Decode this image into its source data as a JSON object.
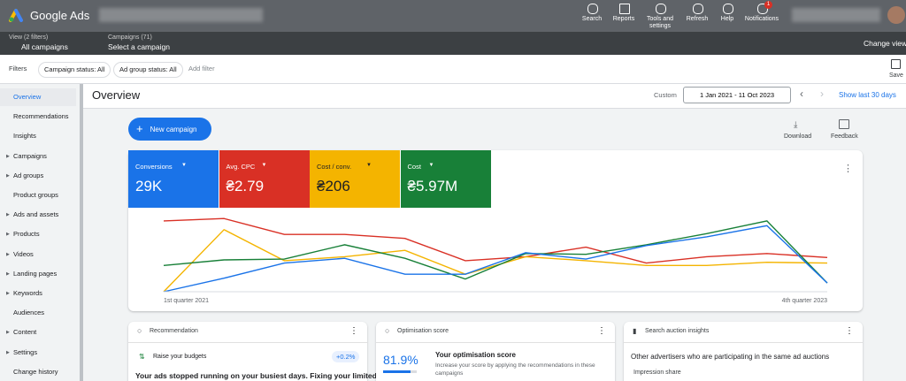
{
  "header": {
    "product": "Google Ads",
    "tools": [
      "Search",
      "Reports",
      "Tools and settings",
      "Refresh",
      "Help",
      "Notifications"
    ],
    "notification_count": "1"
  },
  "subheader": {
    "view_label": "View (2 filters)",
    "view_value": "All campaigns",
    "campaigns_label": "Campaigns (71)",
    "campaigns_value": "Select a campaign",
    "change_view": "Change view"
  },
  "filters": {
    "label": "Filters",
    "chips": [
      "Campaign status: All",
      "Ad group status: All"
    ],
    "add": "Add filter",
    "save": "Save"
  },
  "sidebar": [
    {
      "label": "Overview",
      "expandable": false
    },
    {
      "label": "Recommendations",
      "expandable": false
    },
    {
      "label": "Insights",
      "expandable": false
    },
    {
      "label": "Campaigns",
      "expandable": true
    },
    {
      "label": "Ad groups",
      "expandable": true
    },
    {
      "label": "Product groups",
      "expandable": false
    },
    {
      "label": "Ads and assets",
      "expandable": true
    },
    {
      "label": "Products",
      "expandable": true
    },
    {
      "label": "Videos",
      "expandable": true
    },
    {
      "label": "Landing pages",
      "expandable": true
    },
    {
      "label": "Keywords",
      "expandable": true
    },
    {
      "label": "Audiences",
      "expandable": false
    },
    {
      "label": "Content",
      "expandable": true
    },
    {
      "label": "Settings",
      "expandable": true
    },
    {
      "label": "Change history",
      "expandable": false
    }
  ],
  "page": {
    "title": "Overview",
    "range_type": "Custom",
    "date_range": "1 Jan 2021 - 11 Oct 2023",
    "show_last": "Show last 30 days",
    "new_campaign": "New campaign",
    "download": "Download",
    "feedback": "Feedback"
  },
  "metrics": [
    {
      "name": "Conversions",
      "value": "29K",
      "color": "#1a73e8"
    },
    {
      "name": "Avg. CPC",
      "value": "₴2.79",
      "color": "#d93025"
    },
    {
      "name": "Cost / conv.",
      "value": "₴206",
      "color": "#f4b400"
    },
    {
      "name": "Cost",
      "value": "₴5.97M",
      "color": "#188038"
    }
  ],
  "chart_data": {
    "type": "line",
    "x_start_label": "1st quarter 2021",
    "x_end_label": "4th quarter 2023",
    "ylim": [
      0,
      100
    ],
    "series": [
      {
        "name": "Avg. CPC",
        "color": "#d93025",
        "values": [
          89,
          92,
          72,
          72,
          67,
          39,
          44,
          56,
          36,
          44,
          48,
          43
        ]
      },
      {
        "name": "Cost / conv.",
        "color": "#f4b400",
        "values": [
          0,
          78,
          39,
          44,
          52,
          22,
          44,
          39,
          33,
          33,
          37,
          36
        ]
      },
      {
        "name": "Cost",
        "color": "#188038",
        "values": [
          33,
          40,
          41,
          59,
          42,
          16,
          48,
          47,
          59,
          73,
          89,
          11
        ]
      },
      {
        "name": "Conversions",
        "color": "#1a73e8",
        "values": [
          0,
          17,
          36,
          42,
          22,
          22,
          49,
          41,
          58,
          69,
          83,
          11
        ]
      }
    ]
  },
  "cards": {
    "recommendation": {
      "title": "Recommendation",
      "item": "Raise your budgets",
      "uplift": "+0.2%",
      "text": "Your ads stopped running on your busiest days. Fixing your limited"
    },
    "optimisation": {
      "title": "Optimisation score",
      "score": {
        "value": 81.9,
        "label": "81.9%"
      },
      "heading": "Your optimisation score",
      "text": "Increase your score by applying the recommendations in these campaigns"
    },
    "auction": {
      "title": "Search auction insights",
      "text": "Other advertisers who are participating in the same ad auctions",
      "metric": "Impression share"
    }
  }
}
